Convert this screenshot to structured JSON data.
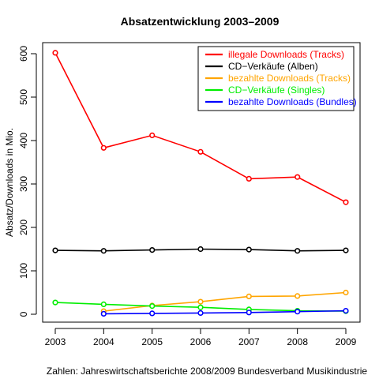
{
  "chart_data": {
    "type": "line",
    "title": "Absatzentwicklung 2003–2009",
    "xlabel": "",
    "ylabel": "Absatz/Downloads in Mio.",
    "caption": "Zahlen: Jahreswirtschaftsberichte 2008/2009 Bundesverband Musikindustrie",
    "x": [
      2003,
      2004,
      2005,
      2006,
      2007,
      2008,
      2009
    ],
    "x_tick_labels": [
      "2003",
      "2004",
      "2005",
      "2006",
      "2007",
      "2008",
      "2009"
    ],
    "y_ticks": [
      0,
      100,
      200,
      300,
      400,
      500,
      600
    ],
    "y_tick_labels": [
      "0",
      "100",
      "200",
      "300",
      "400",
      "500",
      "600"
    ],
    "xlim": [
      2003,
      2009
    ],
    "ylim": [
      0,
      600
    ],
    "grid": false,
    "legend_position": "top-right",
    "series": [
      {
        "name": "illegale Downloads (Tracks)",
        "color": "#ff0000",
        "values": [
          602,
          383,
          412,
          374,
          312,
          316,
          258
        ]
      },
      {
        "name": "CD−Verkäufe (Alben)",
        "color": "#000000",
        "values": [
          147,
          146,
          148,
          150,
          149,
          146,
          147
        ]
      },
      {
        "name": "bezahlte Downloads (Tracks)",
        "color": "#ffa500",
        "values": [
          null,
          7,
          20,
          29,
          41,
          42,
          50
        ]
      },
      {
        "name": "CD−Verkäufe (Singles)",
        "color": "#00ee00",
        "values": [
          27,
          23,
          19,
          16,
          11,
          8,
          7
        ]
      },
      {
        "name": "bezahlte Downloads (Bundles)",
        "color": "#0000ff",
        "values": [
          null,
          1,
          2,
          3,
          4,
          6,
          8
        ]
      }
    ]
  }
}
